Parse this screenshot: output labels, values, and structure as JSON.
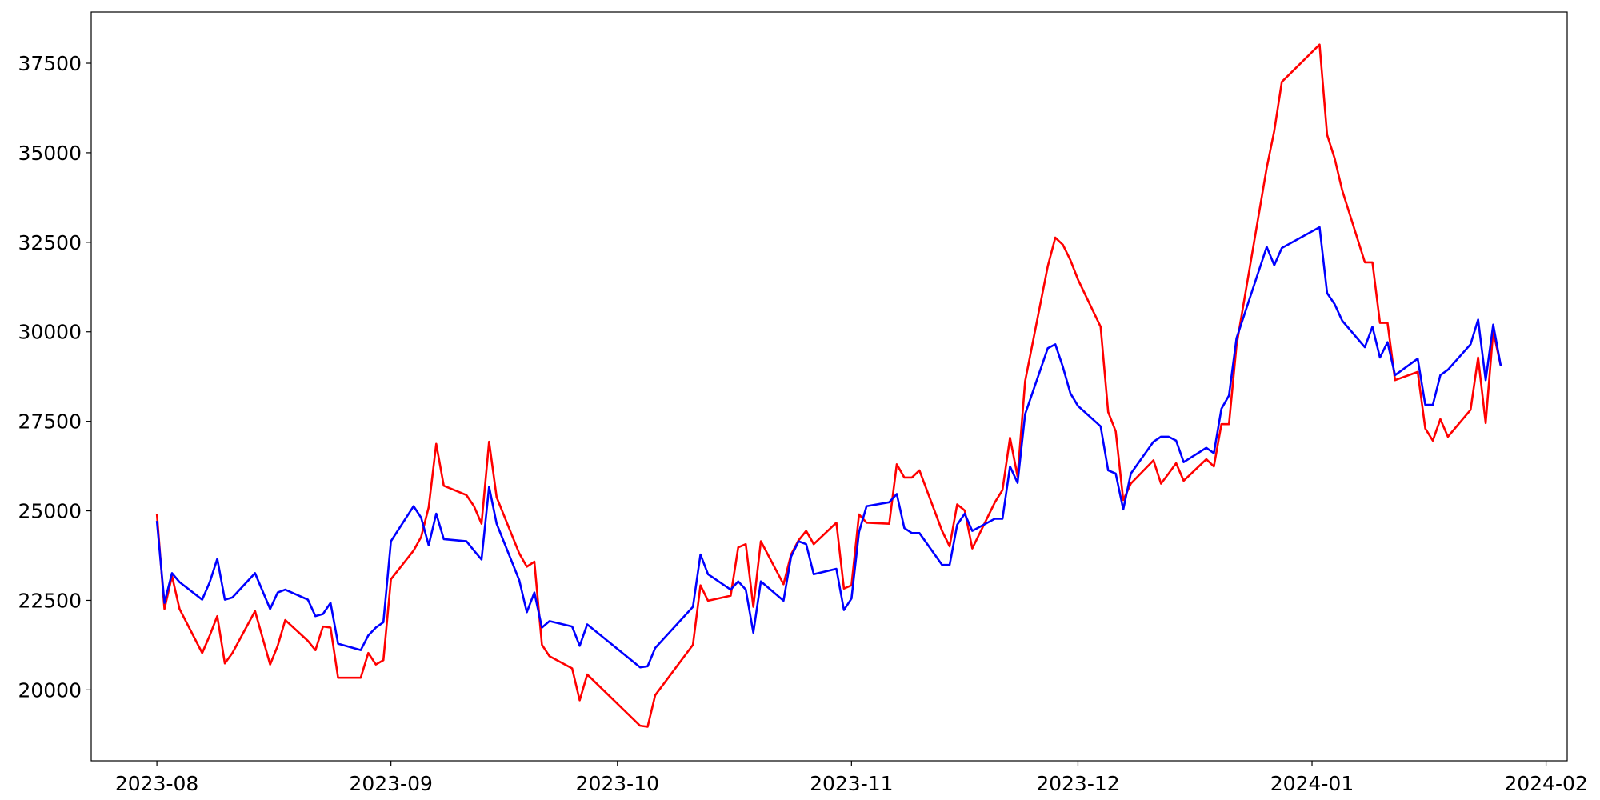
{
  "chart_data": {
    "type": "line",
    "x": [
      0,
      1,
      2,
      3,
      6,
      7,
      8,
      9,
      10,
      13,
      15,
      16,
      17,
      20,
      21,
      22,
      23,
      24,
      27,
      28,
      29,
      30,
      31,
      34,
      35,
      36,
      37,
      38,
      41,
      42,
      43,
      44,
      45,
      48,
      49,
      50,
      51,
      52,
      55,
      56,
      57,
      64,
      65,
      66,
      71,
      72,
      73,
      76,
      77,
      78,
      79,
      80,
      83,
      84,
      85,
      86,
      87,
      90,
      91,
      92,
      93,
      94,
      97,
      98,
      99,
      100,
      101,
      104,
      105,
      106,
      107,
      108,
      111,
      112,
      113,
      114,
      115,
      118,
      119,
      120,
      121,
      122,
      125,
      126,
      127,
      128,
      129,
      132,
      133,
      134,
      135,
      136,
      139,
      140,
      141,
      142,
      143,
      147,
      148,
      149,
      154,
      155,
      156,
      157,
      160,
      161,
      162,
      163,
      164,
      167,
      168,
      169,
      170,
      171,
      174,
      175,
      176,
      177,
      178
    ],
    "series": [
      {
        "color": "#ff0000",
        "values": [
          24920,
          22260,
          23180,
          22260,
          21030,
          21520,
          22060,
          20740,
          21030,
          22200,
          20710,
          21230,
          21950,
          21370,
          21110,
          21770,
          21740,
          20340,
          20340,
          21030,
          20710,
          20830,
          23090,
          23890,
          24270,
          25100,
          26870,
          25700,
          25440,
          25130,
          24640,
          26930,
          25380,
          23810,
          23440,
          23580,
          21260,
          20940,
          20600,
          19710,
          20430,
          19000,
          18970,
          19850,
          21260,
          22920,
          22490,
          22630,
          23980,
          24070,
          22320,
          24150,
          22950,
          23780,
          24180,
          24440,
          24070,
          24670,
          22830,
          22920,
          24900,
          24670,
          24640,
          26300,
          25930,
          25930,
          26130,
          24440,
          24010,
          25180,
          25010,
          23950,
          25240,
          25580,
          27040,
          25960,
          28620,
          31830,
          32630,
          32430,
          32000,
          31460,
          30140,
          27760,
          27220,
          25300,
          25760,
          26410,
          25760,
          26040,
          26330,
          25840,
          26440,
          26240,
          27420,
          27420,
          29620,
          34580,
          35610,
          36980,
          38020,
          35500,
          34840,
          33950,
          31940,
          31940,
          30250,
          30250,
          28650,
          28880,
          27300,
          26960,
          27560,
          27070,
          27820,
          29280,
          27450,
          30020,
          29050
        ]
      },
      {
        "color": "#0000ff",
        "values": [
          24720,
          22430,
          23260,
          23010,
          22520,
          23010,
          23660,
          22520,
          22580,
          23260,
          22260,
          22720,
          22800,
          22520,
          22060,
          22120,
          22430,
          21290,
          21110,
          21520,
          21740,
          21890,
          24150,
          25130,
          24810,
          24040,
          24920,
          24210,
          24150,
          23890,
          23640,
          25670,
          24640,
          23060,
          22170,
          22720,
          21740,
          21920,
          21770,
          21230,
          21830,
          20630,
          20660,
          21170,
          22320,
          23780,
          23230,
          22800,
          23030,
          22800,
          21600,
          23030,
          22490,
          23720,
          24150,
          24070,
          23230,
          23380,
          22230,
          22550,
          24410,
          25130,
          25240,
          25470,
          24520,
          24380,
          24380,
          23490,
          23490,
          24610,
          24920,
          24440,
          24780,
          24780,
          26240,
          25780,
          27700,
          29540,
          29650,
          29020,
          28280,
          27930,
          27360,
          26130,
          26040,
          25040,
          26040,
          26930,
          27070,
          27070,
          26960,
          26360,
          26760,
          26610,
          27850,
          28220,
          29820,
          32370,
          31860,
          32340,
          32920,
          31080,
          30770,
          30310,
          29570,
          30140,
          29280,
          29710,
          28790,
          29250,
          27960,
          27960,
          28790,
          28940,
          29650,
          30340,
          28650,
          30200,
          29050
        ]
      }
    ],
    "xlim": [
      -8.7,
      186.8
    ],
    "ylim": [
      18020,
      38930
    ],
    "xticks": [
      {
        "value": 0,
        "label": "2023-08"
      },
      {
        "value": 31,
        "label": "2023-09"
      },
      {
        "value": 61,
        "label": "2023-10"
      },
      {
        "value": 92,
        "label": "2023-11"
      },
      {
        "value": 122,
        "label": "2023-12"
      },
      {
        "value": 153,
        "label": "2024-01"
      },
      {
        "value": 184,
        "label": "2024-02"
      }
    ],
    "yticks": [
      20000,
      22500,
      25000,
      27500,
      30000,
      32500,
      35000,
      37500
    ],
    "grid": false
  }
}
